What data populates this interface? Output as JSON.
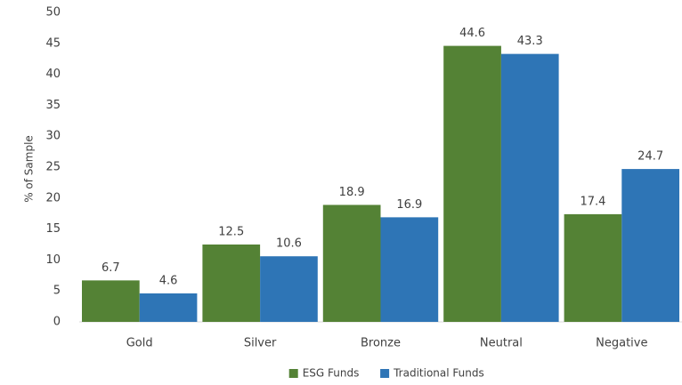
{
  "chart_data": {
    "type": "bar",
    "categories": [
      "Gold",
      "Silver",
      "Bronze",
      "Neutral",
      "Negative"
    ],
    "series": [
      {
        "name": "ESG Funds",
        "color": "#548235",
        "values": [
          6.7,
          12.5,
          18.9,
          44.6,
          17.4
        ]
      },
      {
        "name": "Traditional Funds",
        "color": "#2e75b6",
        "values": [
          4.6,
          10.6,
          16.9,
          43.3,
          24.7
        ]
      }
    ],
    "y_label": "% of Sample",
    "ylim": [
      0,
      50
    ],
    "yticks": [
      0,
      5,
      10,
      15,
      20,
      25,
      30,
      35,
      40,
      45,
      50
    ],
    "grid": false,
    "legend": "bottom",
    "data_labels": true
  }
}
